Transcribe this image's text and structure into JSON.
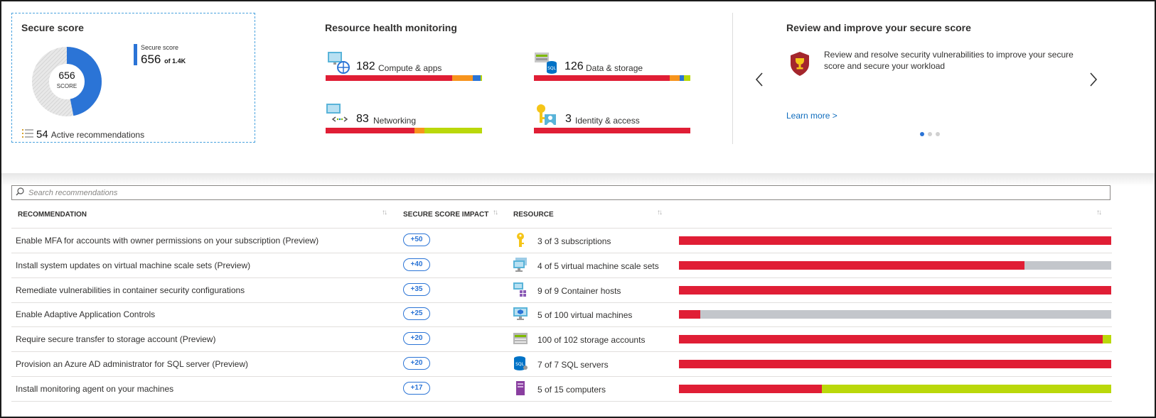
{
  "colors": {
    "red": "#e01e35",
    "orange": "#f7941d",
    "blue": "#2b74d6",
    "lime": "#bad80a",
    "gray": "#c3c6cb",
    "accent": "#2b74d6"
  },
  "secure_score": {
    "title": "Secure score",
    "score": "656",
    "score_unit": "SCORE",
    "legend_label": "Secure score",
    "legend_value": "656",
    "legend_max": "of 1.4K",
    "score_fraction": 0.4686,
    "recommendations_count": "54",
    "recommendations_label": "Active recommendations",
    "list_icon": "list-icon"
  },
  "resource_health": {
    "title": "Resource health monitoring",
    "items": [
      {
        "count": "182",
        "label": "Compute & apps",
        "icon": "compute-icon",
        "segments": [
          {
            "color": "red",
            "pct": 81
          },
          {
            "color": "orange",
            "pct": 13
          },
          {
            "color": "blue",
            "pct": 5
          },
          {
            "color": "lime",
            "pct": 1
          }
        ]
      },
      {
        "count": "126",
        "label": "Data & storage",
        "icon": "sql-storage-icon",
        "segments": [
          {
            "color": "red",
            "pct": 87
          },
          {
            "color": "orange",
            "pct": 6
          },
          {
            "color": "blue",
            "pct": 3
          },
          {
            "color": "lime",
            "pct": 4
          }
        ]
      },
      {
        "count": "83",
        "label": "Networking",
        "icon": "networking-icon",
        "segments": [
          {
            "color": "red",
            "pct": 57
          },
          {
            "color": "orange",
            "pct": 6
          },
          {
            "color": "lime",
            "pct": 37
          }
        ]
      },
      {
        "count": "3",
        "label": "Identity & access",
        "icon": "identity-key-icon",
        "segments": [
          {
            "color": "red",
            "pct": 100
          }
        ]
      }
    ]
  },
  "review": {
    "title": "Review and improve your secure score",
    "body": "Review and resolve security vulnerabilities to improve your secure score and secure your workload",
    "link": "Learn more >",
    "icon": "trophy-shield-icon",
    "page_count": 3,
    "active_page": 1
  },
  "search": {
    "placeholder": "Search recommendations",
    "value": ""
  },
  "table": {
    "columns": [
      "RECOMMENDATION",
      "SECURE SCORE IMPACT",
      "RESOURCE"
    ],
    "rows": [
      {
        "name": "Enable MFA for accounts with owner permissions on your subscription (Preview)",
        "impact": "+50",
        "icon": "key-icon",
        "resource": "3 of 3 subscriptions",
        "segments": [
          {
            "color": "red",
            "pct": 100
          }
        ]
      },
      {
        "name": "Install system updates on virtual machine scale sets (Preview)",
        "impact": "+40",
        "icon": "vm-scale-set-icon",
        "resource": "4 of 5 virtual machine scale sets",
        "segments": [
          {
            "color": "red",
            "pct": 80
          },
          {
            "color": "gray",
            "pct": 20
          }
        ]
      },
      {
        "name": "Remediate vulnerabilities in container security configurations",
        "impact": "+35",
        "icon": "container-host-icon",
        "resource": "9 of 9 Container hosts",
        "segments": [
          {
            "color": "red",
            "pct": 100
          }
        ]
      },
      {
        "name": "Enable Adaptive Application Controls",
        "impact": "+25",
        "icon": "virtual-machine-icon",
        "resource": "5 of 100 virtual machines",
        "segments": [
          {
            "color": "red",
            "pct": 5
          },
          {
            "color": "gray",
            "pct": 95
          }
        ]
      },
      {
        "name": "Require secure transfer to storage account (Preview)",
        "impact": "+20",
        "icon": "storage-account-icon",
        "resource": "100 of 102 storage accounts",
        "segments": [
          {
            "color": "red",
            "pct": 98
          },
          {
            "color": "lime",
            "pct": 2
          }
        ]
      },
      {
        "name": "Provision an Azure AD administrator for SQL server (Preview)",
        "impact": "+20",
        "icon": "sql-server-icon",
        "resource": "7 of 7 SQL servers",
        "segments": [
          {
            "color": "red",
            "pct": 100
          }
        ]
      },
      {
        "name": "Install monitoring agent on your machines",
        "impact": "+17",
        "icon": "computer-icon",
        "resource": "5 of 15 computers",
        "segments": [
          {
            "color": "red",
            "pct": 33
          },
          {
            "color": "lime",
            "pct": 67
          }
        ]
      }
    ]
  }
}
